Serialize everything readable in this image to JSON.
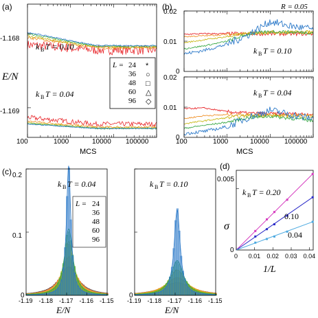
{
  "panel_labels": {
    "a": "(a)",
    "b": "(b)",
    "c": "(c)",
    "d": "(d)"
  },
  "colors": {
    "L24": "#e8262a",
    "L36": "#f0922b",
    "L48": "#c8b817",
    "L60": "#39a845",
    "L96": "#2a78c8",
    "d_020": "#d63bbf",
    "d_010": "#2a2ac8",
    "d_004": "#4aa8e0"
  },
  "texts": {
    "a_ylabel": "E/N",
    "a_t1": "k",
    "a_t1_sub": "B",
    "a_t1_rest": "T = 0.10",
    "a_t2": "k",
    "a_t2_sub": "B",
    "a_t2_rest": "T = 0.04",
    "a_xlabel": "MCS",
    "b_xlabel": "MCS",
    "b_R": "R = 0.05",
    "b_t1": "k",
    "b_t1_sub": "B",
    "b_t1_rest": "T = 0.10",
    "b_t2": "k",
    "b_t2_sub": "B",
    "b_t2_rest": "T = 0.04",
    "c_t1": "k",
    "c_t1_sub": "B",
    "c_t1_rest": "T = 0.04",
    "c_t2": "k",
    "c_t2_sub": "B",
    "c_t2_rest": "T = 0.10",
    "c_xlabel1": "E/N",
    "c_xlabel2": "E/N",
    "d_ylabel": "σ",
    "d_xlabel": "1/L",
    "d_l1a": "k",
    "d_l1sub": "B",
    "d_l1b": "T = 0.20",
    "d_l2": "0.10",
    "d_l3": "0.04"
  },
  "legend_a": {
    "title_prefix": "L =",
    "entries": [
      {
        "label": "24",
        "marker": "*",
        "color": "#e8262a"
      },
      {
        "label": "36",
        "marker": "○",
        "color": "#f0922b"
      },
      {
        "label": "48",
        "marker": "□",
        "color": "#c8b817"
      },
      {
        "label": "60",
        "marker": "△",
        "color": "#39a845"
      },
      {
        "label": "96",
        "marker": "◇",
        "color": "#2a78c8"
      }
    ]
  },
  "legend_c": {
    "title_prefix": "L =",
    "entries": [
      {
        "label": "24",
        "color": "#e8262a"
      },
      {
        "label": "36",
        "color": "#f0922b"
      },
      {
        "label": "48",
        "color": "#c8b817"
      },
      {
        "label": "60",
        "color": "#39a845"
      },
      {
        "label": "96",
        "color": "#2a78c8"
      }
    ]
  },
  "chart_data": [
    {
      "panel": "a",
      "type": "line",
      "log_x": true,
      "x_ticks": [
        "100",
        "1000",
        "10000",
        "100000"
      ],
      "y_ticks": [
        "-1.168",
        "-1.169"
      ],
      "y_tick_values": [
        -1.168,
        -1.169
      ],
      "xlim": [
        100,
        100000
      ],
      "ylim": [
        -1.1694,
        -1.1676
      ],
      "xlabel": "MCS",
      "ylabel": "E/N",
      "series": [
        {
          "name": "L = 24",
          "color": "#e8262a",
          "groups": [
            {
              "start": -1.16815,
              "end": -1.16822,
              "noise": 4e-05
            },
            {
              "start": -1.16913,
              "end": -1.16922,
              "noise": 2e-05
            }
          ]
        },
        {
          "name": "L = 36",
          "color": "#f0922b",
          "groups": [
            {
              "start": -1.16805,
              "end": -1.16819,
              "noise": 2e-05
            },
            {
              "start": -1.16918,
              "end": -1.16926,
              "noise": 1.5e-05
            }
          ]
        },
        {
          "name": "L = 48",
          "color": "#c8b817",
          "groups": [
            {
              "start": -1.16803,
              "end": -1.16818,
              "noise": 1.5e-05
            },
            {
              "start": -1.1692,
              "end": -1.16927,
              "noise": 1e-05
            }
          ]
        },
        {
          "name": "L = 60",
          "color": "#39a845",
          "groups": [
            {
              "start": -1.168,
              "end": -1.16817,
              "noise": 1e-05
            },
            {
              "start": -1.16921,
              "end": -1.16928,
              "noise": 1e-05
            }
          ]
        },
        {
          "name": "L = 96",
          "color": "#2a78c8",
          "groups": [
            {
              "start": -1.16798,
              "end": -1.16816,
              "noise": 8e-06
            },
            {
              "start": -1.16922,
              "end": -1.16928,
              "noise": 6e-06
            }
          ]
        }
      ]
    },
    {
      "panel": "b-top",
      "type": "line",
      "log_x": true,
      "x_ticks": [
        "100",
        "1000",
        "10000",
        "100000"
      ],
      "y_ticks": [
        "0.02",
        "0.01",
        "0"
      ],
      "xlim": [
        100,
        100000
      ],
      "ylim": [
        0,
        0.02
      ],
      "series": [
        {
          "name": "L = 24",
          "color": "#e8262a",
          "values": [
            [
              100,
              0.0123
            ],
            [
              300,
              0.0125
            ],
            [
              1000,
              0.0125
            ],
            [
              3000,
              0.0125
            ],
            [
              10000,
              0.0124
            ],
            [
              100000,
              0.0124
            ]
          ]
        },
        {
          "name": "L = 36",
          "color": "#f0922b",
          "values": [
            [
              100,
              0.0115
            ],
            [
              300,
              0.0118
            ],
            [
              1000,
              0.0122
            ],
            [
              3000,
              0.0126
            ],
            [
              10000,
              0.0128
            ],
            [
              100000,
              0.0129
            ]
          ]
        },
        {
          "name": "L = 48",
          "color": "#c8b817",
          "values": [
            [
              100,
              0.0095
            ],
            [
              300,
              0.0105
            ],
            [
              1000,
              0.0115
            ],
            [
              3000,
              0.0126
            ],
            [
              10000,
              0.013
            ],
            [
              100000,
              0.013
            ]
          ]
        },
        {
          "name": "L = 60",
          "color": "#39a845",
          "values": [
            [
              100,
              0.0075
            ],
            [
              300,
              0.0085
            ],
            [
              1000,
              0.01
            ],
            [
              3000,
              0.0123
            ],
            [
              10000,
              0.0132
            ],
            [
              100000,
              0.0128
            ]
          ]
        },
        {
          "name": "L = 96",
          "color": "#2a78c8",
          "values": [
            [
              100,
              0.0058
            ],
            [
              300,
              0.007
            ],
            [
              1000,
              0.009
            ],
            [
              3000,
              0.012
            ],
            [
              10000,
              0.0165
            ],
            [
              30000,
              0.015
            ],
            [
              100000,
              0.014
            ]
          ]
        }
      ]
    },
    {
      "panel": "b-bottom",
      "type": "line",
      "log_x": true,
      "x_ticks": [
        "100",
        "1000",
        "10000",
        "100000"
      ],
      "y_ticks": [
        "0.02",
        "0.01",
        "0"
      ],
      "xlim": [
        100,
        100000
      ],
      "ylim": [
        0,
        0.02
      ],
      "xlabel": "MCS",
      "series": [
        {
          "name": "L = 24",
          "color": "#e8262a",
          "values": [
            [
              100,
              0.0095
            ],
            [
              300,
              0.0097
            ],
            [
              1000,
              0.0085
            ],
            [
              3000,
              0.008
            ],
            [
              10000,
              0.0078
            ],
            [
              100000,
              0.0077
            ]
          ]
        },
        {
          "name": "L = 36",
          "color": "#f0922b",
          "values": [
            [
              100,
              0.0062
            ],
            [
              300,
              0.0072
            ],
            [
              1000,
              0.0075
            ],
            [
              3000,
              0.0076
            ],
            [
              10000,
              0.0075
            ],
            [
              100000,
              0.0074
            ]
          ]
        },
        {
          "name": "L = 48",
          "color": "#c8b817",
          "values": [
            [
              100,
              0.0045
            ],
            [
              300,
              0.0055
            ],
            [
              1000,
              0.0065
            ],
            [
              3000,
              0.0072
            ],
            [
              10000,
              0.0072
            ],
            [
              100000,
              0.0068
            ]
          ]
        },
        {
          "name": "L = 60",
          "color": "#39a845",
          "values": [
            [
              100,
              0.003
            ],
            [
              300,
              0.004
            ],
            [
              1000,
              0.005
            ],
            [
              3000,
              0.0065
            ],
            [
              10000,
              0.007
            ],
            [
              100000,
              0.0055
            ]
          ]
        },
        {
          "name": "L = 96",
          "color": "#2a78c8",
          "values": [
            [
              100,
              0.0012
            ],
            [
              300,
              0.002
            ],
            [
              1000,
              0.0035
            ],
            [
              3000,
              0.0065
            ],
            [
              10000,
              0.009
            ],
            [
              30000,
              0.0075
            ],
            [
              100000,
              0.0062
            ]
          ]
        }
      ]
    },
    {
      "panel": "c-left",
      "type": "bar",
      "subtype": "histogram",
      "x_ticks": [
        "-1.19",
        "-1.18",
        "-1.17",
        "-1.16",
        "-1.15"
      ],
      "y_ticks": [
        "0.1",
        "0.2"
      ],
      "xlim": [
        -1.19,
        -1.15
      ],
      "ylim": [
        0,
        0.2
      ],
      "xlabel": "E/N",
      "center": -1.169,
      "series": [
        {
          "name": "L = 24",
          "color": "#e8262a",
          "peak": 0.045,
          "width": 0.0055
        },
        {
          "name": "L = 36",
          "color": "#f0922b",
          "peak": 0.06,
          "width": 0.0042
        },
        {
          "name": "L = 48",
          "color": "#c8b817",
          "peak": 0.085,
          "width": 0.003
        },
        {
          "name": "L = 60",
          "color": "#39a845",
          "peak": 0.105,
          "width": 0.0025
        },
        {
          "name": "L = 96",
          "color": "#2a78c8",
          "peak": 0.205,
          "width": 0.0013
        }
      ]
    },
    {
      "panel": "c-right",
      "type": "bar",
      "subtype": "histogram",
      "x_ticks": [
        "-1.19",
        "-1.18",
        "-1.17",
        "-1.16",
        "-1.15"
      ],
      "xlim": [
        -1.19,
        -1.15
      ],
      "ylim": [
        0,
        0.2
      ],
      "xlabel": "E/N",
      "center": -1.169,
      "series": [
        {
          "name": "L = 24",
          "color": "#e8262a",
          "peak": 0.02,
          "width": 0.009
        },
        {
          "name": "L = 36",
          "color": "#f0922b",
          "peak": 0.028,
          "width": 0.007
        },
        {
          "name": "L = 48",
          "color": "#c8b817",
          "peak": 0.04,
          "width": 0.005
        },
        {
          "name": "L = 60",
          "color": "#39a845",
          "peak": 0.055,
          "width": 0.0037
        },
        {
          "name": "L = 96",
          "color": "#2a78c8",
          "peak": 0.135,
          "width": 0.0018
        }
      ]
    },
    {
      "panel": "d",
      "type": "scatter",
      "x_ticks": [
        "0",
        "0.01",
        "0.02",
        "0.03",
        "0.04"
      ],
      "y_ticks": [
        "0",
        "0.005"
      ],
      "xlim": [
        0,
        0.042
      ],
      "ylim": [
        0,
        0.0065
      ],
      "xlabel": "1/L",
      "ylabel": "σ",
      "series": [
        {
          "name": "kBT = 0.20",
          "color": "#d63bbf",
          "x": [
            0.0104,
            0.0167,
            0.0208,
            0.0278,
            0.0417
          ],
          "y": [
            0.00155,
            0.0025,
            0.0031,
            0.0041,
            0.0062
          ]
        },
        {
          "name": "0.10",
          "color": "#2a2ac8",
          "x": [
            0.0104,
            0.0167,
            0.0208,
            0.0278,
            0.0417
          ],
          "y": [
            0.0011,
            0.0017,
            0.0021,
            0.0028,
            0.0043
          ]
        },
        {
          "name": "0.04",
          "color": "#4aa8e0",
          "x": [
            0.0104,
            0.0167,
            0.0208,
            0.0278,
            0.0417
          ],
          "y": [
            0.0006,
            0.0009,
            0.0011,
            0.0015,
            0.0023
          ]
        }
      ]
    }
  ]
}
